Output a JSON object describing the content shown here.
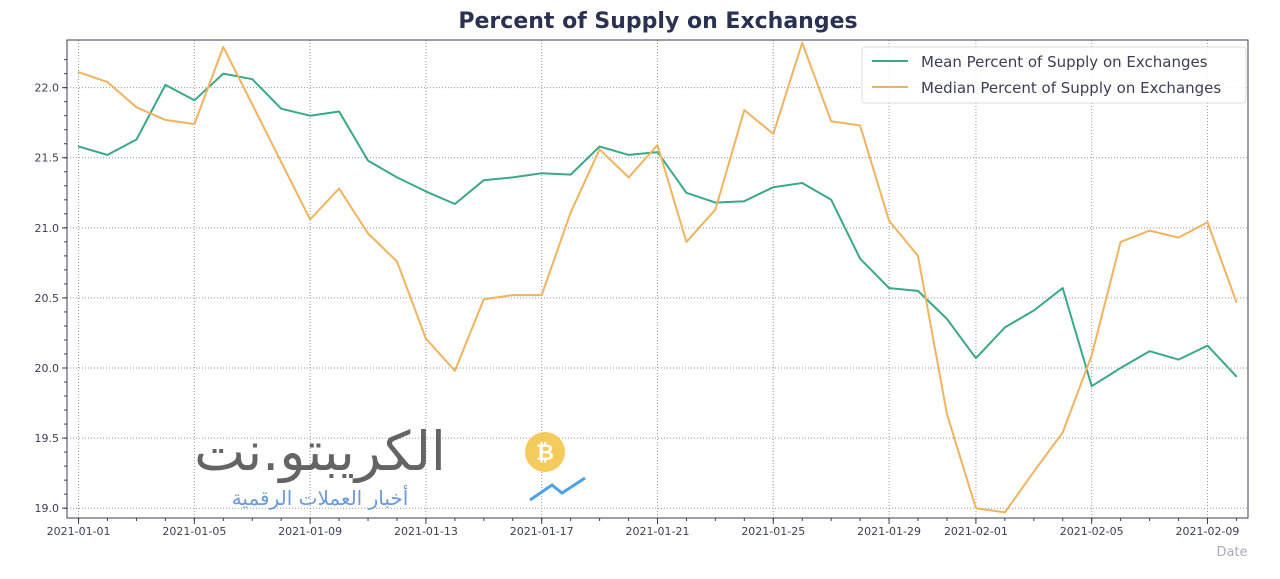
{
  "chart_data": {
    "type": "line",
    "title": "Percent of Supply on Exchanges",
    "xlabel": "Date",
    "ylabel": "",
    "x": [
      "2021-01-01",
      "2021-01-02",
      "2021-01-03",
      "2021-01-04",
      "2021-01-05",
      "2021-01-06",
      "2021-01-07",
      "2021-01-08",
      "2021-01-09",
      "2021-01-10",
      "2021-01-11",
      "2021-01-12",
      "2021-01-13",
      "2021-01-14",
      "2021-01-15",
      "2021-01-16",
      "2021-01-17",
      "2021-01-18",
      "2021-01-19",
      "2021-01-20",
      "2021-01-21",
      "2021-01-22",
      "2021-01-23",
      "2021-01-24",
      "2021-01-25",
      "2021-01-26",
      "2021-01-27",
      "2021-01-28",
      "2021-01-29",
      "2021-01-30",
      "2021-01-31",
      "2021-02-01",
      "2021-02-02",
      "2021-02-03",
      "2021-02-04",
      "2021-02-05",
      "2021-02-06",
      "2021-02-07",
      "2021-02-08",
      "2021-02-09",
      "2021-02-10"
    ],
    "series": [
      {
        "name": "Mean Percent of Supply on Exchanges",
        "color": "#3aa987",
        "values": [
          21.58,
          21.52,
          21.63,
          22.02,
          21.91,
          22.1,
          22.06,
          21.85,
          21.8,
          21.83,
          21.48,
          21.36,
          21.26,
          21.17,
          21.34,
          21.36,
          21.39,
          21.38,
          21.58,
          21.52,
          21.54,
          21.25,
          21.18,
          21.19,
          21.29,
          21.32,
          21.2,
          20.78,
          20.57,
          20.55,
          20.35,
          20.07,
          20.29,
          20.41,
          20.57,
          19.87,
          20.0,
          20.12,
          20.06,
          20.16,
          19.94
        ]
      },
      {
        "name": "Median Percent of Supply on Exchanges",
        "color": "#f0b45e",
        "values": [
          22.11,
          22.04,
          21.86,
          21.77,
          21.74,
          22.29,
          21.88,
          21.47,
          21.06,
          21.28,
          20.96,
          20.76,
          20.21,
          19.98,
          20.49,
          20.52,
          20.52,
          21.11,
          21.56,
          21.36,
          21.59,
          20.9,
          21.13,
          21.84,
          21.67,
          22.32,
          21.76,
          21.73,
          21.05,
          20.8,
          19.67,
          19.0,
          18.97,
          19.26,
          19.54,
          20.09,
          20.9,
          20.98,
          20.93,
          21.04,
          20.47
        ]
      }
    ],
    "x_tick_labels": [
      "2021-01-01",
      "2021-01-05",
      "2021-01-09",
      "2021-01-13",
      "2021-01-17",
      "2021-01-21",
      "2021-01-25",
      "2021-01-29",
      "2021-02-01",
      "2021-02-05",
      "2021-02-09"
    ],
    "y_ticks": [
      19.0,
      19.5,
      20.0,
      20.5,
      21.0,
      21.5,
      22.0
    ],
    "y_tick_labels": [
      "19.0",
      "19.5",
      "20.0",
      "20.5",
      "21.0",
      "21.5",
      "22.0"
    ],
    "ylim": [
      18.93,
      22.34
    ],
    "xlim_days": [
      -0.4,
      40.4
    ],
    "grid": true,
    "legend_position": "top-right"
  },
  "watermark": {
    "brand": "الكريبتو.نت",
    "tagline": "أخبار العملات الرقمية"
  }
}
